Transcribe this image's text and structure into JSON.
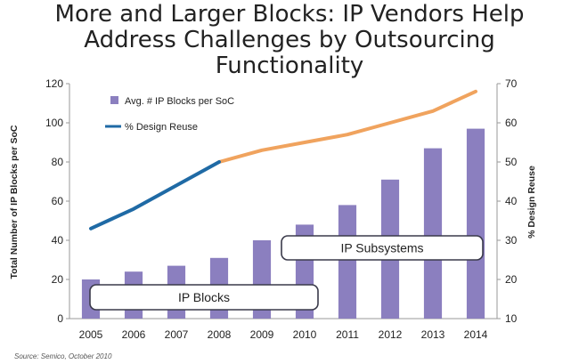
{
  "title_lines": [
    "More and Larger Blocks:  IP Vendors Help",
    "Address Challenges by Outsourcing",
    "Functionality"
  ],
  "source": "Source: Semico, October 2010",
  "colors": {
    "bars": "#8b7fbf",
    "reuse_line": "#1f6aa5",
    "reuse_projection": "#f0a35e",
    "axis": "#999999",
    "text": "#222222"
  },
  "chart_data": {
    "type": "bar",
    "title": "More and Larger Blocks:  IP Vendors Help Address Challenges by Outsourcing Functionality",
    "categories": [
      "2005",
      "2006",
      "2007",
      "2008",
      "2009",
      "2010",
      "2011",
      "2012",
      "2013",
      "2014"
    ],
    "ylabel": "Total Number of IP Blocks per SoC",
    "y2label": "% Design Reuse",
    "ylim": [
      0,
      120
    ],
    "y2lim": [
      10,
      70
    ],
    "yticks": [
      "0",
      "20",
      "40",
      "60",
      "80",
      "100",
      "120"
    ],
    "y2ticks": [
      "10",
      "20",
      "30",
      "40",
      "50",
      "60",
      "70"
    ],
    "grid": false,
    "legend": "top-left",
    "series": [
      {
        "name": "Avg. # IP Blocks per SoC",
        "type": "bar",
        "axis": "left",
        "values": [
          20,
          24,
          27,
          31,
          40,
          48,
          58,
          71,
          87,
          97
        ]
      },
      {
        "name": "% Design Reuse",
        "type": "line",
        "axis": "right",
        "values": [
          33,
          38,
          44,
          50,
          53,
          55,
          57,
          60,
          63,
          68
        ],
        "projection_from_index": 3
      }
    ],
    "annotations": [
      "IP Blocks",
      "IP Subsystems"
    ]
  }
}
